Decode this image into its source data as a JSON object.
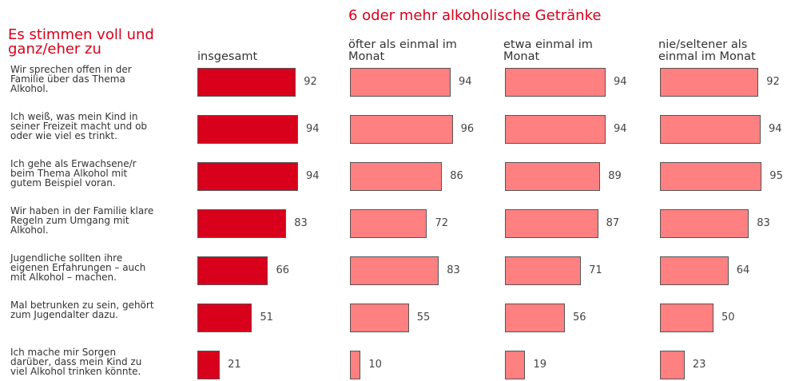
{
  "chart_data": {
    "type": "bar",
    "orientation": "horizontal",
    "title": "Es stimmen voll und ganz/eher zu",
    "group_title": "6 oder mehr alkoholische Getränke",
    "categories": [
      "Wir sprechen offen in der Familie über das Thema Alkohol.",
      "Ich weiß, was mein Kind in seiner Freizeit macht und ob oder wie viel es trinkt.",
      "Ich gehe als Erwachsene/r beim Thema Alkohol mit gutem Beispiel voran.",
      "Wir haben in der Familie klare Regeln zum Umgang mit Alkohol.",
      "Jugendliche sollten ihre eigenen Erfahrungen – auch mit Alkohol – machen.",
      "Mal betrunken zu sein, gehört zum Jugendalter dazu.",
      "Ich mache mir Sorgen darüber, dass mein Kind zu viel Alkohol trinken könnte."
    ],
    "series": [
      {
        "name": "insgesamt",
        "color": "#d9001b",
        "values": [
          92,
          94,
          94,
          83,
          66,
          51,
          21
        ]
      },
      {
        "name": "öfter als einmal im Monat",
        "color": "#ff8080",
        "values": [
          94,
          96,
          86,
          72,
          83,
          55,
          10
        ]
      },
      {
        "name": "etwa einmal im Monat",
        "color": "#ff8080",
        "values": [
          94,
          94,
          89,
          87,
          71,
          56,
          19
        ]
      },
      {
        "name": "nie/seltener als einmal im Monat",
        "color": "#ff8080",
        "values": [
          92,
          94,
          95,
          83,
          64,
          50,
          23
        ]
      }
    ],
    "xlim": [
      0,
      100
    ]
  }
}
